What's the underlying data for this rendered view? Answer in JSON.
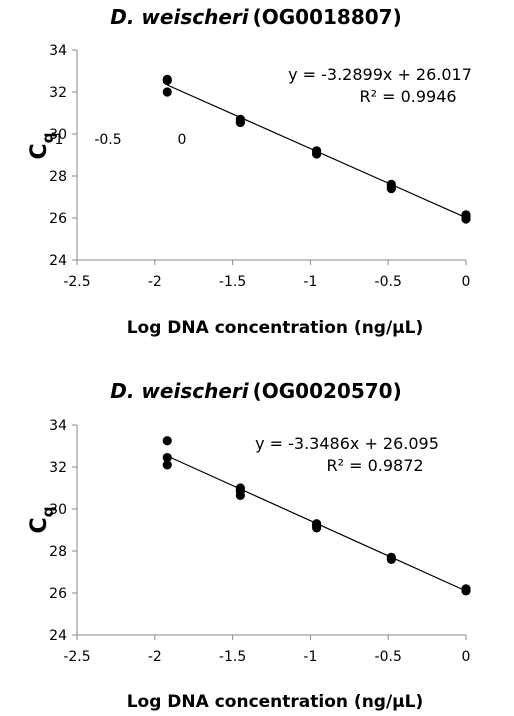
{
  "chart_data": [
    {
      "type": "scatter",
      "title_italic": "D. weischeri",
      "title_rest": "(OG0018807)",
      "xlabel": "Log DNA concentration (ng/µL)",
      "ylabel_main": "C",
      "ylabel_sub": "q",
      "xlim": [
        -2.5,
        0
      ],
      "ylim": [
        24,
        34
      ],
      "x_ticks": [
        -2.5,
        -2,
        -1.5,
        -1,
        -0.5,
        0
      ],
      "x_tick_labels": [
        "-2.5",
        "-2",
        "-1.5",
        "-1",
        "-0.5",
        "0"
      ],
      "y_ticks": [
        24,
        26,
        28,
        30,
        32,
        34
      ],
      "y_tick_labels": [
        "24",
        "26",
        "28",
        "30",
        "32",
        "34"
      ],
      "points": [
        {
          "x": -1.92,
          "y": 32.6
        },
        {
          "x": -1.92,
          "y": 32.55
        },
        {
          "x": -1.92,
          "y": 32.0
        },
        {
          "x": -1.45,
          "y": 30.7
        },
        {
          "x": -1.45,
          "y": 30.6
        },
        {
          "x": -1.45,
          "y": 30.55
        },
        {
          "x": -0.96,
          "y": 29.2
        },
        {
          "x": -0.96,
          "y": 29.1
        },
        {
          "x": -0.96,
          "y": 29.05
        },
        {
          "x": -0.48,
          "y": 27.6
        },
        {
          "x": -0.48,
          "y": 27.5
        },
        {
          "x": -0.48,
          "y": 27.4
        },
        {
          "x": 0,
          "y": 26.15
        },
        {
          "x": 0,
          "y": 26.05
        },
        {
          "x": 0,
          "y": 25.95
        }
      ],
      "trendline": {
        "slope": -3.2899,
        "intercept": 26.017,
        "x_range": [
          -1.92,
          0
        ]
      },
      "equation_text": "y = -3.2899x + 26.017",
      "r2_text": "R² = 0.9946",
      "stray_labels": [
        "1",
        "-0.5",
        "0"
      ],
      "grid": false,
      "legend": "none"
    },
    {
      "type": "scatter",
      "title_italic": "D. weischeri",
      "title_rest": "(OG0020570)",
      "xlabel": "Log DNA concentration (ng/µL)",
      "ylabel_main": "C",
      "ylabel_sub": "q",
      "xlim": [
        -2.5,
        0
      ],
      "ylim": [
        24,
        34
      ],
      "x_ticks": [
        -2.5,
        -2,
        -1.5,
        -1,
        -0.5,
        0
      ],
      "x_tick_labels": [
        "-2.5",
        "-2",
        "-1.5",
        "-1",
        "-0.5",
        "0"
      ],
      "y_ticks": [
        24,
        26,
        28,
        30,
        32,
        34
      ],
      "y_tick_labels": [
        "24",
        "26",
        "28",
        "30",
        "32",
        "34"
      ],
      "points": [
        {
          "x": -1.92,
          "y": 33.25
        },
        {
          "x": -1.92,
          "y": 32.45
        },
        {
          "x": -1.92,
          "y": 32.1
        },
        {
          "x": -1.45,
          "y": 31.0
        },
        {
          "x": -1.45,
          "y": 30.85
        },
        {
          "x": -1.45,
          "y": 30.65
        },
        {
          "x": -0.96,
          "y": 29.3
        },
        {
          "x": -0.96,
          "y": 29.2
        },
        {
          "x": -0.96,
          "y": 29.1
        },
        {
          "x": -0.48,
          "y": 27.7
        },
        {
          "x": -0.48,
          "y": 27.6
        },
        {
          "x": 0,
          "y": 26.2
        },
        {
          "x": 0,
          "y": 26.1
        }
      ],
      "trendline": {
        "slope": -3.3486,
        "intercept": 26.095,
        "x_range": [
          -1.92,
          0
        ]
      },
      "equation_text": "y = -3.3486x + 26.095",
      "r2_text": "R² = 0.9872",
      "stray_labels": [],
      "grid": false,
      "legend": "none"
    }
  ]
}
